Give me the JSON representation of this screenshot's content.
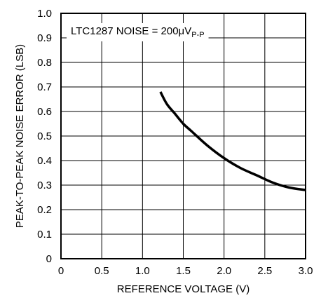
{
  "chart_data": {
    "type": "line",
    "title": "",
    "annotation": {
      "text": "LTC1287 NOISE = 200μV",
      "subscript": "P-P"
    },
    "xlabel": "REFERENCE VOLTAGE (V)",
    "ylabel": "PEAK-TO-PEAK NOISE ERROR (LSB)",
    "xlim": [
      0,
      3.0
    ],
    "ylim": [
      0,
      1.0
    ],
    "x_ticks": [
      "0",
      "0.5",
      "1.0",
      "1.5",
      "2.0",
      "2.5",
      "3.0"
    ],
    "y_ticks": [
      "0",
      "0.1",
      "0.2",
      "0.3",
      "0.4",
      "0.5",
      "0.6",
      "0.7",
      "0.8",
      "0.9",
      "1.0"
    ],
    "grid": true,
    "legend": "none",
    "series": [
      {
        "x": [
          1.22,
          1.3,
          1.4,
          1.5,
          1.6,
          1.8,
          2.0,
          2.2,
          2.4,
          2.6,
          2.8,
          3.0
        ],
        "values": [
          0.68,
          0.63,
          0.59,
          0.55,
          0.52,
          0.46,
          0.41,
          0.37,
          0.34,
          0.31,
          0.29,
          0.28
        ]
      }
    ],
    "colors": {
      "line": "#000000",
      "grid": "#000000",
      "background": "#ffffff"
    }
  }
}
